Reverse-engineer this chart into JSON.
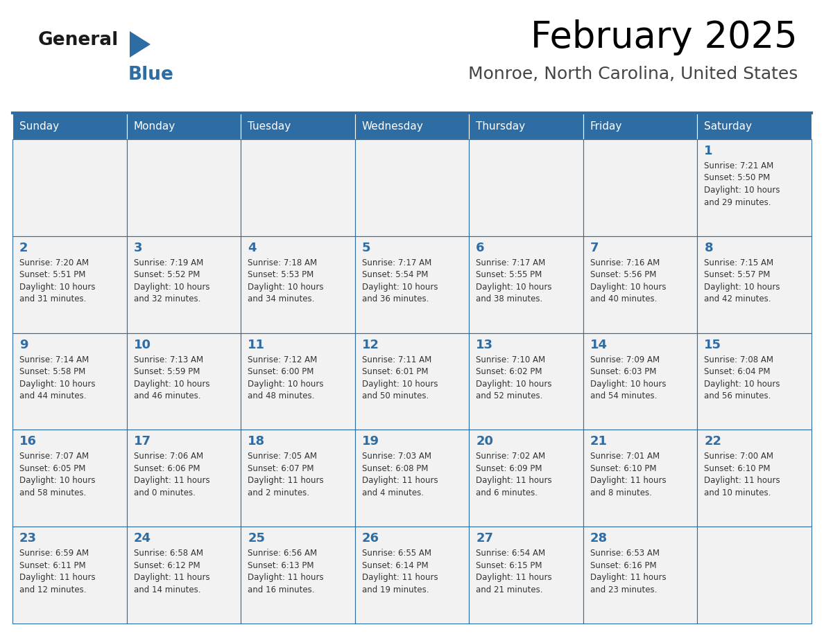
{
  "title": "February 2025",
  "subtitle": "Monroe, North Carolina, United States",
  "header_color": "#2E6DA4",
  "header_text_color": "#FFFFFF",
  "cell_bg_color": "#F2F2F2",
  "cell_border_color": "#2E6DA4",
  "day_number_color": "#2E6DA4",
  "text_color": "#333333",
  "logo_general_color": "#1a1a1a",
  "logo_blue_color": "#2E6DA4",
  "days_of_week": [
    "Sunday",
    "Monday",
    "Tuesday",
    "Wednesday",
    "Thursday",
    "Friday",
    "Saturday"
  ],
  "weeks": [
    [
      {
        "day": null,
        "data": null
      },
      {
        "day": null,
        "data": null
      },
      {
        "day": null,
        "data": null
      },
      {
        "day": null,
        "data": null
      },
      {
        "day": null,
        "data": null
      },
      {
        "day": null,
        "data": null
      },
      {
        "day": 1,
        "data": {
          "sunrise": "7:21 AM",
          "sunset": "5:50 PM",
          "daylight": "10 hours and 29 minutes."
        }
      }
    ],
    [
      {
        "day": 2,
        "data": {
          "sunrise": "7:20 AM",
          "sunset": "5:51 PM",
          "daylight": "10 hours and 31 minutes."
        }
      },
      {
        "day": 3,
        "data": {
          "sunrise": "7:19 AM",
          "sunset": "5:52 PM",
          "daylight": "10 hours and 32 minutes."
        }
      },
      {
        "day": 4,
        "data": {
          "sunrise": "7:18 AM",
          "sunset": "5:53 PM",
          "daylight": "10 hours and 34 minutes."
        }
      },
      {
        "day": 5,
        "data": {
          "sunrise": "7:17 AM",
          "sunset": "5:54 PM",
          "daylight": "10 hours and 36 minutes."
        }
      },
      {
        "day": 6,
        "data": {
          "sunrise": "7:17 AM",
          "sunset": "5:55 PM",
          "daylight": "10 hours and 38 minutes."
        }
      },
      {
        "day": 7,
        "data": {
          "sunrise": "7:16 AM",
          "sunset": "5:56 PM",
          "daylight": "10 hours and 40 minutes."
        }
      },
      {
        "day": 8,
        "data": {
          "sunrise": "7:15 AM",
          "sunset": "5:57 PM",
          "daylight": "10 hours and 42 minutes."
        }
      }
    ],
    [
      {
        "day": 9,
        "data": {
          "sunrise": "7:14 AM",
          "sunset": "5:58 PM",
          "daylight": "10 hours and 44 minutes."
        }
      },
      {
        "day": 10,
        "data": {
          "sunrise": "7:13 AM",
          "sunset": "5:59 PM",
          "daylight": "10 hours and 46 minutes."
        }
      },
      {
        "day": 11,
        "data": {
          "sunrise": "7:12 AM",
          "sunset": "6:00 PM",
          "daylight": "10 hours and 48 minutes."
        }
      },
      {
        "day": 12,
        "data": {
          "sunrise": "7:11 AM",
          "sunset": "6:01 PM",
          "daylight": "10 hours and 50 minutes."
        }
      },
      {
        "day": 13,
        "data": {
          "sunrise": "7:10 AM",
          "sunset": "6:02 PM",
          "daylight": "10 hours and 52 minutes."
        }
      },
      {
        "day": 14,
        "data": {
          "sunrise": "7:09 AM",
          "sunset": "6:03 PM",
          "daylight": "10 hours and 54 minutes."
        }
      },
      {
        "day": 15,
        "data": {
          "sunrise": "7:08 AM",
          "sunset": "6:04 PM",
          "daylight": "10 hours and 56 minutes."
        }
      }
    ],
    [
      {
        "day": 16,
        "data": {
          "sunrise": "7:07 AM",
          "sunset": "6:05 PM",
          "daylight": "10 hours and 58 minutes."
        }
      },
      {
        "day": 17,
        "data": {
          "sunrise": "7:06 AM",
          "sunset": "6:06 PM",
          "daylight": "11 hours and 0 minutes."
        }
      },
      {
        "day": 18,
        "data": {
          "sunrise": "7:05 AM",
          "sunset": "6:07 PM",
          "daylight": "11 hours and 2 minutes."
        }
      },
      {
        "day": 19,
        "data": {
          "sunrise": "7:03 AM",
          "sunset": "6:08 PM",
          "daylight": "11 hours and 4 minutes."
        }
      },
      {
        "day": 20,
        "data": {
          "sunrise": "7:02 AM",
          "sunset": "6:09 PM",
          "daylight": "11 hours and 6 minutes."
        }
      },
      {
        "day": 21,
        "data": {
          "sunrise": "7:01 AM",
          "sunset": "6:10 PM",
          "daylight": "11 hours and 8 minutes."
        }
      },
      {
        "day": 22,
        "data": {
          "sunrise": "7:00 AM",
          "sunset": "6:10 PM",
          "daylight": "11 hours and 10 minutes."
        }
      }
    ],
    [
      {
        "day": 23,
        "data": {
          "sunrise": "6:59 AM",
          "sunset": "6:11 PM",
          "daylight": "11 hours and 12 minutes."
        }
      },
      {
        "day": 24,
        "data": {
          "sunrise": "6:58 AM",
          "sunset": "6:12 PM",
          "daylight": "11 hours and 14 minutes."
        }
      },
      {
        "day": 25,
        "data": {
          "sunrise": "6:56 AM",
          "sunset": "6:13 PM",
          "daylight": "11 hours and 16 minutes."
        }
      },
      {
        "day": 26,
        "data": {
          "sunrise": "6:55 AM",
          "sunset": "6:14 PM",
          "daylight": "11 hours and 19 minutes."
        }
      },
      {
        "day": 27,
        "data": {
          "sunrise": "6:54 AM",
          "sunset": "6:15 PM",
          "daylight": "11 hours and 21 minutes."
        }
      },
      {
        "day": 28,
        "data": {
          "sunrise": "6:53 AM",
          "sunset": "6:16 PM",
          "daylight": "11 hours and 23 minutes."
        }
      },
      {
        "day": null,
        "data": null
      }
    ]
  ]
}
